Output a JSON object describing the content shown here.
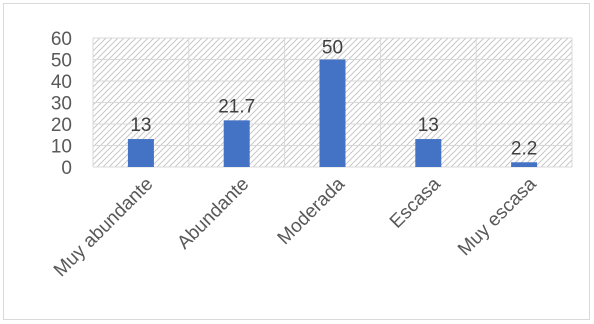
{
  "chart_data": {
    "type": "bar",
    "title": "",
    "xlabel": "",
    "ylabel": "",
    "categories": [
      "Muy abundante",
      "Abundante",
      "Moderada",
      "Escasa",
      "Muy escasa"
    ],
    "values": [
      13,
      21.7,
      50,
      13,
      2.2
    ],
    "data_labels": [
      "13",
      "21.7",
      "50",
      "13",
      "2.2"
    ],
    "ylim": [
      0,
      60
    ],
    "yticks": [
      0,
      10,
      20,
      30,
      40,
      50,
      60
    ],
    "grid": true,
    "legend": "none",
    "colors": {
      "bar": "#4472C4",
      "grid": "#d9d9d9",
      "hatch": "#c8c8c8"
    }
  }
}
